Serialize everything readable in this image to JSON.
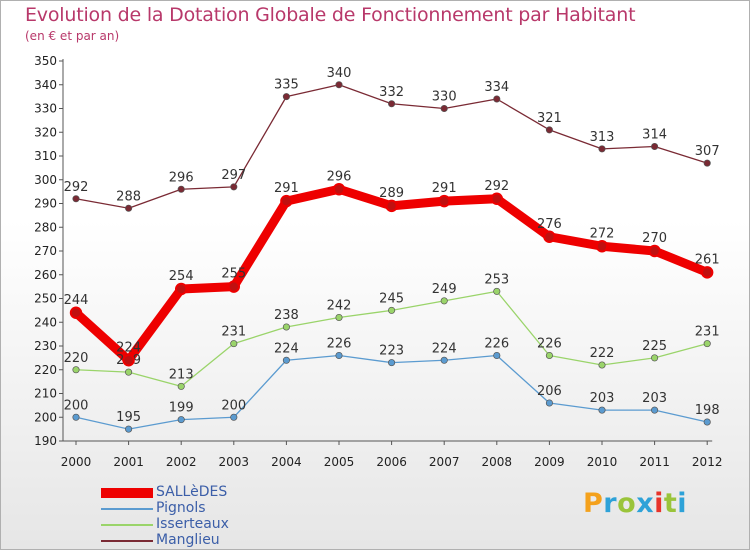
{
  "title": "Evolution de la Dotation Globale de Fonctionnement par Habitant",
  "subtitle": "(en € et par an)",
  "logo": {
    "text": "Proxiti",
    "colors": [
      "#f4a11c",
      "#2ea2d8",
      "#9ac43a",
      "#2ea2d8",
      "#e8332a",
      "#9ac43a",
      "#2ea2d8"
    ]
  },
  "chart_data": {
    "type": "line",
    "title": "Evolution de la Dotation Globale de Fonctionnement par Habitant",
    "ylabel": "(en € et par an)",
    "x": [
      "2000",
      "2001",
      "2002",
      "2003",
      "2004",
      "2005",
      "2006",
      "2007",
      "2008",
      "2009",
      "2010",
      "2011",
      "2012"
    ],
    "ylim": [
      190,
      350
    ],
    "yticks": [
      190,
      200,
      210,
      220,
      230,
      240,
      250,
      260,
      270,
      280,
      290,
      300,
      310,
      320,
      330,
      340,
      350
    ],
    "series": [
      {
        "name": "Manglieu",
        "color": "#7a2a34",
        "values": [
          292,
          288,
          296,
          297,
          335,
          340,
          332,
          330,
          334,
          321,
          313,
          314,
          307
        ]
      },
      {
        "name": "Isserteaux",
        "color": "#9ad46a",
        "values": [
          220,
          219,
          213,
          231,
          238,
          242,
          245,
          249,
          253,
          226,
          222,
          225,
          231
        ]
      },
      {
        "name": "Pignols",
        "color": "#5b9bd0",
        "values": [
          200,
          195,
          199,
          200,
          224,
          226,
          223,
          224,
          226,
          206,
          203,
          203,
          198
        ]
      },
      {
        "name": "SALLèDES",
        "color": "#ee0000",
        "values": [
          244,
          224,
          254,
          255,
          291,
          296,
          289,
          291,
          292,
          276,
          272,
          270,
          261
        ]
      }
    ]
  }
}
